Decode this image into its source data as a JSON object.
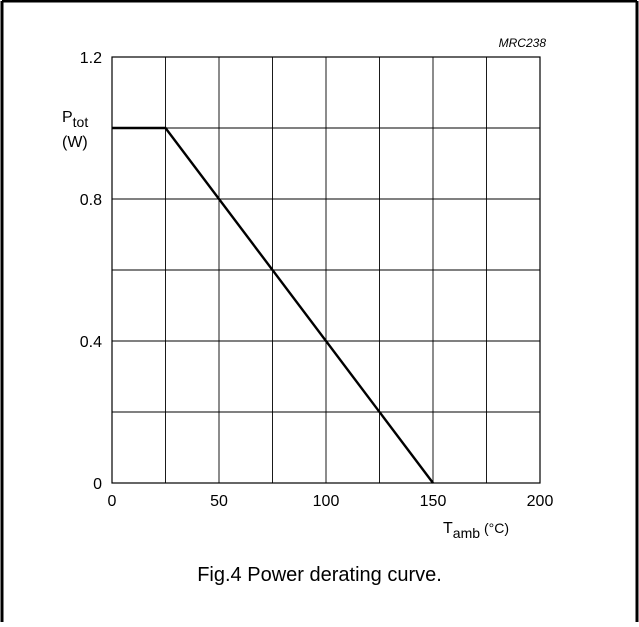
{
  "figure": {
    "code": "MRC238",
    "caption": "Fig.4  Power derating curve."
  },
  "chart_data": {
    "type": "line",
    "title": "",
    "ylabel_main": "P",
    "ylabel_sub": "tot",
    "ylabel_unit": "(W)",
    "xlabel_main": "T",
    "xlabel_sub": "amb",
    "xlabel_unit": "(°C)",
    "xlim": [
      0,
      200
    ],
    "ylim": [
      0,
      1.2
    ],
    "x_ticks": [
      0,
      50,
      100,
      150,
      200
    ],
    "x_tick_labels": [
      "0",
      "50",
      "100",
      "150",
      "200"
    ],
    "y_ticks": [
      0,
      0.4,
      0.8,
      1.2
    ],
    "y_tick_labels": [
      "0",
      "0.4",
      "0.8",
      "1.2"
    ],
    "x_grid": [
      0,
      25,
      50,
      75,
      100,
      125,
      150,
      175,
      200
    ],
    "y_grid": [
      0,
      0.2,
      0.4,
      0.6,
      0.8,
      1.0,
      1.2
    ],
    "grid": true,
    "series": [
      {
        "x": [
          0,
          25,
          150
        ],
        "y": [
          1.0,
          1.0,
          0
        ]
      }
    ]
  }
}
